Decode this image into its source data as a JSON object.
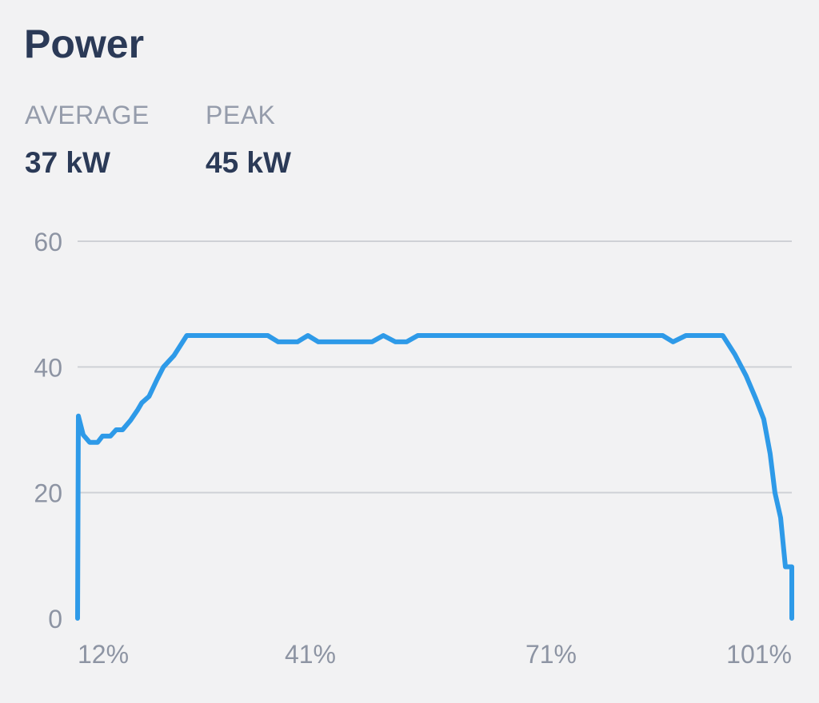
{
  "title": "Power",
  "stats": [
    {
      "label": "AVERAGE",
      "value": "37 kW"
    },
    {
      "label": "PEAK",
      "value": "45 kW"
    }
  ],
  "chart_data": {
    "type": "line",
    "title": "",
    "xlabel": "",
    "ylabel": "",
    "xlim": [
      12,
      101
    ],
    "ylim": [
      0,
      60
    ],
    "y_ticks": [
      "0",
      "20",
      "40",
      "60"
    ],
    "y_tick_values": [
      0,
      20,
      40,
      60
    ],
    "x_ticks": [
      "12%",
      "41%",
      "71%",
      "101%"
    ],
    "x_tick_values": [
      12,
      41,
      71,
      101
    ],
    "grid": true,
    "line_color": "#2e9ae8",
    "series": [
      {
        "x": [
          12,
          12.1,
          12.7,
          13.5,
          14.5,
          15.1,
          16.1,
          16.8,
          17.6,
          18.6,
          19.5,
          20,
          20.9,
          21.9,
          22.7,
          24,
          25.6,
          35.7,
          37,
          39.4,
          40.7,
          42,
          48.7,
          50.1,
          51.6,
          53,
          54.4,
          84.9,
          86.2,
          87.8,
          92.4,
          93.9,
          95.3,
          96.5,
          97.5,
          98.3,
          98.9,
          99.6,
          100.2,
          101,
          101
        ],
        "y": [
          0,
          32.2,
          29.2,
          28,
          28,
          29,
          29,
          30,
          30,
          31.5,
          33.2,
          34.3,
          35.3,
          38,
          40,
          41.8,
          45,
          45,
          44,
          44,
          45,
          44,
          44,
          45,
          44,
          44,
          45,
          45,
          44,
          45,
          45,
          42,
          38.6,
          35,
          31.7,
          26.2,
          20,
          16,
          8.2,
          8.2,
          0
        ]
      }
    ]
  }
}
